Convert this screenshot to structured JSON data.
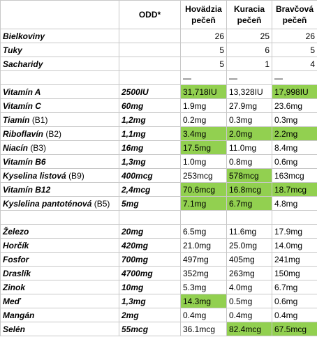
{
  "header": {
    "odd": "ODD*",
    "beef": [
      "Hovädzia",
      "pečeň"
    ],
    "chicken": [
      "Kuracia",
      "pečeň"
    ],
    "pork": [
      "Bravčová",
      "pečeň"
    ]
  },
  "macros": [
    {
      "name": "Bielkoviny",
      "beef": "26",
      "chicken": "25",
      "pork": "26"
    },
    {
      "name": "Tuky",
      "beef": "5",
      "chicken": "6",
      "pork": "5"
    },
    {
      "name": "Sacharidy",
      "beef": "5",
      "chicken": "1",
      "pork": "4"
    }
  ],
  "dash": "—",
  "vitamins": [
    {
      "name": "Vitamín A",
      "code": "",
      "odd": "2500IU",
      "beef": "31,718IU",
      "chicken": "13,328IU",
      "pork": "17,998IU",
      "hl": [
        true,
        false,
        true
      ]
    },
    {
      "name": "Vitamín C",
      "code": "",
      "odd": "60mg",
      "beef": "1.9mg",
      "chicken": "27.9mg",
      "pork": "23.6mg",
      "hl": [
        false,
        false,
        false
      ]
    },
    {
      "name": "Tiamín",
      "code": "(B1)",
      "odd": "1,2mg",
      "beef": "0.2mg",
      "chicken": "0.3mg",
      "pork": "0.3mg",
      "hl": [
        false,
        false,
        false
      ]
    },
    {
      "name": "Riboflavín",
      "code": "(B2)",
      "odd": "1,1mg",
      "beef": "3.4mg",
      "chicken": "2.0mg",
      "pork": "2.2mg",
      "hl": [
        true,
        true,
        true
      ]
    },
    {
      "name": "Niacín",
      "code": "(B3)",
      "odd": "16mg",
      "beef": "17.5mg",
      "chicken": "11.0mg",
      "pork": "8.4mg",
      "hl": [
        true,
        false,
        false
      ]
    },
    {
      "name": "Vitamín B6",
      "code": "",
      "odd": "1,3mg",
      "beef": "1.0mg",
      "chicken": "0.8mg",
      "pork": "0.6mg",
      "hl": [
        false,
        false,
        false
      ]
    },
    {
      "name": "Kyselina listová",
      "code": "(B9)",
      "odd": "400mcg",
      "beef": "253mcg",
      "chicken": "578mcg",
      "pork": "163mcg",
      "hl": [
        false,
        true,
        false
      ]
    },
    {
      "name": "Vitamín B12",
      "code": "",
      "odd": "2,4mcg",
      "beef": "70.6mcg",
      "chicken": "16.8mcg",
      "pork": "18.7mcg",
      "hl": [
        true,
        true,
        true
      ]
    },
    {
      "name": "Kyslelina pantoténová",
      "code": "(B5)",
      "odd": "5mg",
      "beef": "7.1mg",
      "chicken": "6.7mg",
      "pork": "4.8mg",
      "hl": [
        true,
        true,
        false
      ]
    }
  ],
  "minerals": [
    {
      "name": "Železo",
      "odd": "20mg",
      "beef": "6.5mg",
      "chicken": "11.6mg",
      "pork": "17.9mg",
      "hl": [
        false,
        false,
        false
      ]
    },
    {
      "name": "Horčík",
      "odd": "420mg",
      "beef": "21.0mg",
      "chicken": "25.0mg",
      "pork": "14.0mg",
      "hl": [
        false,
        false,
        false
      ]
    },
    {
      "name": "Fosfor",
      "odd": "700mg",
      "beef": "497mg",
      "chicken": "405mg",
      "pork": "241mg",
      "hl": [
        false,
        false,
        false
      ]
    },
    {
      "name": "Draslík",
      "odd": "4700mg",
      "beef": "352mg",
      "chicken": "263mg",
      "pork": "150mg",
      "hl": [
        false,
        false,
        false
      ]
    },
    {
      "name": "Zinok",
      "odd": "10mg",
      "beef": "5.3mg",
      "chicken": "4.0mg",
      "pork": "6.7mg",
      "hl": [
        false,
        false,
        false
      ]
    },
    {
      "name": "Meď",
      "odd": "1,3mg",
      "beef": "14.3mg",
      "chicken": "0.5mg",
      "pork": "0.6mg",
      "hl": [
        true,
        false,
        false
      ]
    },
    {
      "name": "Mangán",
      "odd": "2mg",
      "beef": "0.4mg",
      "chicken": "0.4mg",
      "pork": "0.4mg",
      "hl": [
        false,
        false,
        false
      ]
    },
    {
      "name": "Selén",
      "odd": "55mcg",
      "beef": "36.1mcg",
      "chicken": "82.4mcg",
      "pork": "67.5mcg",
      "hl": [
        false,
        true,
        true
      ]
    }
  ]
}
